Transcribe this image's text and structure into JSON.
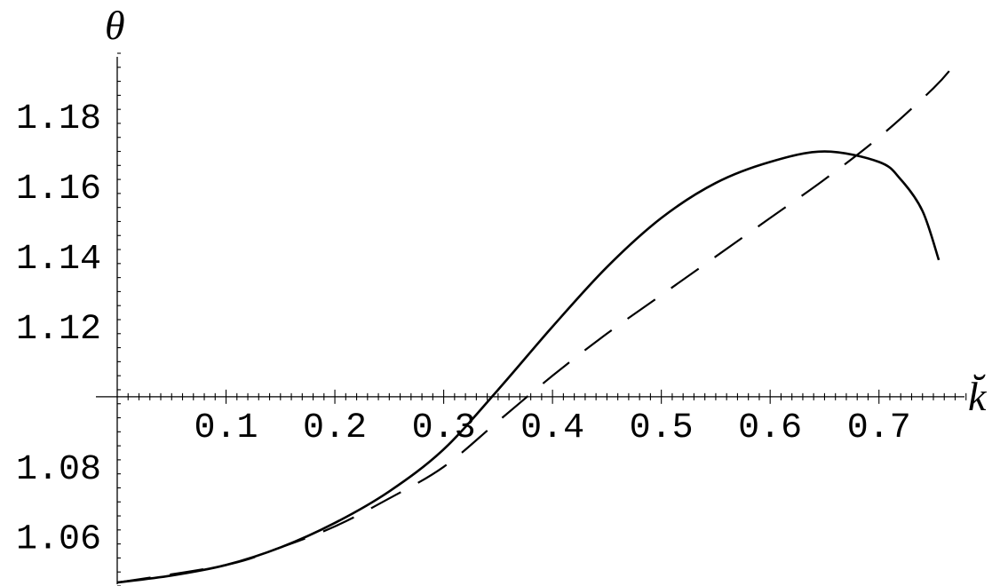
{
  "chart_data": {
    "type": "line",
    "title": "",
    "xlabel": "k̆",
    "ylabel": "θ",
    "xlim": [
      0,
      0.79
    ],
    "ylim": [
      1.046,
      1.198
    ],
    "x_axis_crossing_y": 1.1,
    "x_ticks": [
      {
        "value": 0.1,
        "label": "0.1"
      },
      {
        "value": 0.2,
        "label": "0.2"
      },
      {
        "value": 0.3,
        "label": "0.3"
      },
      {
        "value": 0.4,
        "label": "0.4"
      },
      {
        "value": 0.5,
        "label": "0.5"
      },
      {
        "value": 0.6,
        "label": "0.6"
      },
      {
        "value": 0.7,
        "label": "0.7"
      }
    ],
    "y_ticks": [
      {
        "value": 1.06,
        "label": "1.06"
      },
      {
        "value": 1.08,
        "label": "1.08"
      },
      {
        "value": 1.12,
        "label": "1.12"
      },
      {
        "value": 1.14,
        "label": "1.14"
      },
      {
        "value": 1.16,
        "label": "1.16"
      },
      {
        "value": 1.18,
        "label": "1.18"
      }
    ],
    "grid": false,
    "series": [
      {
        "style": "solid",
        "x": [
          0,
          0.05,
          0.1,
          0.15,
          0.2,
          0.25,
          0.3,
          0.35,
          0.4,
          0.45,
          0.5,
          0.55,
          0.6,
          0.65,
          0.7,
          0.72,
          0.74,
          0.755
        ],
        "y": [
          1.047,
          1.049,
          1.052,
          1.057,
          1.064,
          1.073,
          1.085,
          1.102,
          1.12,
          1.137,
          1.151,
          1.161,
          1.167,
          1.17,
          1.167,
          1.162,
          1.153,
          1.139
        ]
      },
      {
        "style": "dashed",
        "x": [
          0,
          0.1,
          0.15,
          0.2,
          0.25,
          0.3,
          0.35,
          0.4,
          0.45,
          0.5,
          0.55,
          0.6,
          0.65,
          0.7,
          0.75,
          0.77
        ],
        "y": [
          1.047,
          1.052,
          1.057,
          1.063,
          1.071,
          1.08,
          1.093,
          1.106,
          1.118,
          1.129,
          1.14,
          1.151,
          1.162,
          1.174,
          1.188,
          1.195
        ]
      }
    ]
  }
}
